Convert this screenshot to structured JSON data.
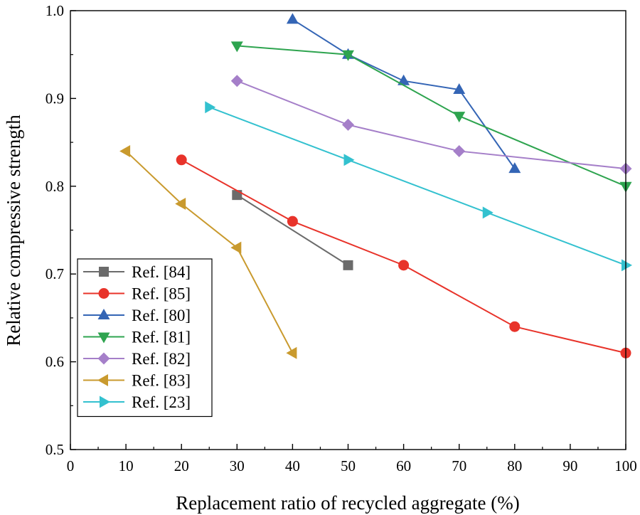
{
  "chart_data": {
    "type": "line",
    "title": "",
    "xlabel": "Replacement ratio of recycled aggregate (%)",
    "ylabel": "Relative compressive strength",
    "xlim": [
      0,
      100
    ],
    "ylim": [
      0.5,
      1.0
    ],
    "x_ticks": [
      0,
      10,
      20,
      30,
      40,
      50,
      60,
      70,
      80,
      90,
      100
    ],
    "y_ticks": [
      0.5,
      0.6,
      0.7,
      0.8,
      0.9,
      1.0
    ],
    "y_tick_labels": [
      "0.5",
      "0.6",
      "0.7",
      "0.8",
      "0.9",
      "1.0"
    ],
    "legend_position": "bottom-left",
    "series": [
      {
        "name": "Ref. [84]",
        "color": "#6b6b6b",
        "marker": "square",
        "x": [
          30,
          50
        ],
        "y": [
          0.79,
          0.71
        ]
      },
      {
        "name": "Ref. [85]",
        "color": "#e8332a",
        "marker": "circle",
        "x": [
          20,
          40,
          60,
          80,
          100
        ],
        "y": [
          0.83,
          0.76,
          0.71,
          0.64,
          0.61
        ]
      },
      {
        "name": "Ref. [80]",
        "color": "#3465b5",
        "marker": "triangle-up",
        "x": [
          40,
          50,
          60,
          70,
          80
        ],
        "y": [
          0.99,
          0.95,
          0.92,
          0.91,
          0.82
        ]
      },
      {
        "name": "Ref. [81]",
        "color": "#2ea44f",
        "marker": "triangle-down",
        "x": [
          30,
          50,
          70,
          100
        ],
        "y": [
          0.96,
          0.95,
          0.88,
          0.8
        ]
      },
      {
        "name": "Ref. [82]",
        "color": "#a57fc9",
        "marker": "diamond",
        "x": [
          30,
          50,
          70,
          100
        ],
        "y": [
          0.92,
          0.87,
          0.84,
          0.82
        ]
      },
      {
        "name": "Ref. [83]",
        "color": "#c99a2e",
        "marker": "triangle-left",
        "x": [
          10,
          20,
          30,
          40
        ],
        "y": [
          0.84,
          0.78,
          0.73,
          0.61
        ]
      },
      {
        "name": "Ref. [23]",
        "color": "#33c1cf",
        "marker": "triangle-right",
        "x": [
          25,
          50,
          75,
          100
        ],
        "y": [
          0.89,
          0.83,
          0.77,
          0.71
        ]
      }
    ]
  }
}
